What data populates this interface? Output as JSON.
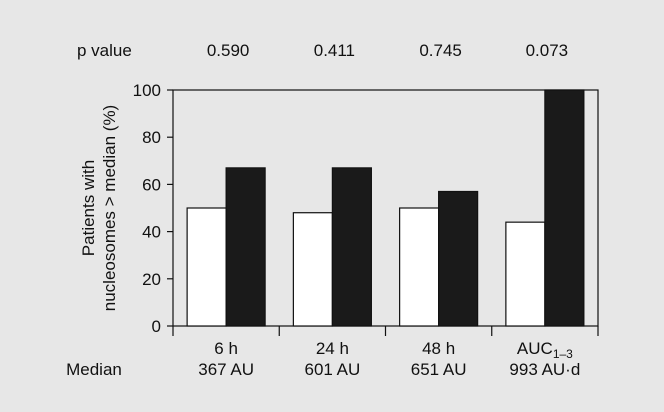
{
  "chart_data": {
    "type": "bar",
    "categories": [
      "6 h",
      "24 h",
      "48 h",
      "AUC1–3"
    ],
    "category_base": [
      "6 h",
      "24 h",
      "48 h",
      "AUC"
    ],
    "category_sub": [
      "",
      "",
      "",
      "1–3"
    ],
    "medians": [
      "367 AU",
      "601 AU",
      "651 AU",
      "993 AU·d"
    ],
    "median_row_label": "Median",
    "p_value_label": "p value",
    "p_values": [
      "0.590",
      "0.411",
      "0.745",
      "0.073"
    ],
    "series": [
      {
        "values": [
          50,
          48,
          50,
          44
        ],
        "color": "#ffffff"
      },
      {
        "values": [
          67,
          67,
          57,
          100
        ],
        "color": "#1a1a1a"
      }
    ],
    "ylabel_line1": "Patients with",
    "ylabel_line2": "nucleosomes > median (%)",
    "ylim": [
      0,
      100
    ],
    "yticks": [
      0,
      20,
      40,
      60,
      80,
      100
    ],
    "xlabel": "",
    "title": ""
  }
}
